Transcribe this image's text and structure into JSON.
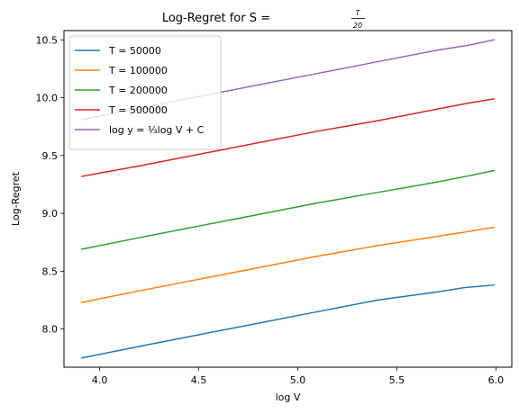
{
  "chart_data": {
    "type": "line",
    "title": "Log-Regret for S = ",
    "title_fraction": {
      "numerator": "T",
      "denominator": "20"
    },
    "xlabel": "log V",
    "ylabel": "Log-Regret",
    "xlim": [
      3.82,
      6.08
    ],
    "ylim": [
      7.67,
      10.58
    ],
    "x_ticks": [
      4.0,
      4.5,
      5.0,
      5.5,
      6.0
    ],
    "x_tick_labels": [
      "4.0",
      "4.5",
      "5.0",
      "5.5",
      "6.0"
    ],
    "y_ticks": [
      8.0,
      8.5,
      9.0,
      9.5,
      10.0,
      10.5
    ],
    "y_tick_labels": [
      "8.0",
      "8.5",
      "9.0",
      "9.5",
      "10.0",
      "10.5"
    ],
    "grid": false,
    "legend_position": "top-left",
    "x": [
      3.91,
      4.2,
      4.5,
      4.8,
      5.1,
      5.4,
      5.7,
      5.85,
      5.99
    ],
    "series": [
      {
        "name": "T = 50000",
        "color": "#1f77b4",
        "values": [
          7.75,
          7.85,
          7.95,
          8.05,
          8.15,
          8.25,
          8.32,
          8.36,
          8.38
        ]
      },
      {
        "name": "T = 100000",
        "color": "#ff7f0e",
        "values": [
          8.23,
          8.33,
          8.43,
          8.53,
          8.63,
          8.72,
          8.8,
          8.84,
          8.88
        ]
      },
      {
        "name": "T = 200000",
        "color": "#2ca02c",
        "values": [
          8.69,
          8.79,
          8.89,
          8.99,
          9.09,
          9.18,
          9.27,
          9.32,
          9.37
        ]
      },
      {
        "name": "T = 500000",
        "color": "#d62728",
        "values": [
          9.32,
          9.41,
          9.51,
          9.61,
          9.71,
          9.8,
          9.9,
          9.95,
          9.99
        ]
      },
      {
        "name": "log y = ⅓log V + C",
        "color": "#9467bd",
        "values": [
          9.81,
          9.91,
          10.01,
          10.11,
          10.21,
          10.31,
          10.41,
          10.45,
          10.5
        ]
      }
    ]
  }
}
